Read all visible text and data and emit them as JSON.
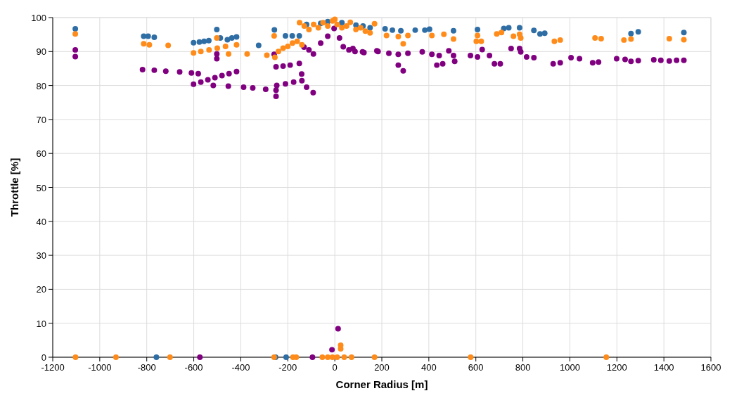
{
  "chart_data": {
    "type": "scatter",
    "xlabel": "Corner Radius [m]",
    "ylabel": "Throttle [%]",
    "xlim": [
      -1200,
      1600
    ],
    "xticks": [
      -1200,
      -1000,
      -800,
      -600,
      -400,
      -200,
      0,
      200,
      400,
      600,
      800,
      1000,
      1200,
      1400,
      1600
    ],
    "ylim": [
      0,
      100
    ],
    "yticks": [
      0,
      10,
      20,
      30,
      40,
      50,
      60,
      70,
      80,
      90,
      100
    ],
    "grid": true,
    "marker": "circle",
    "series": [
      {
        "color": "#2f6ea5",
        "x": [
          -1104,
          -813,
          -794,
          -768,
          -601,
          -576,
          -556,
          -536,
          -502,
          -487,
          -457,
          -438,
          -418,
          -324,
          -257,
          -210,
          -181,
          -151,
          -120,
          -60,
          -30,
          30,
          90,
          120,
          150,
          214,
          245,
          281,
          342,
          383,
          403,
          505,
          607,
          719,
          740,
          786,
          847,
          873,
          893,
          1260,
          1291,
          1485,
          -759,
          -252,
          -207
        ],
        "values": [
          96.7,
          94.5,
          94.5,
          94.2,
          92.6,
          92.8,
          93.0,
          93.2,
          96.5,
          94.0,
          93.5,
          94.0,
          94.3,
          91.8,
          96.4,
          94.6,
          94.6,
          94.6,
          98.0,
          98.3,
          98.8,
          98.5,
          97.8,
          97.5,
          97.0,
          96.7,
          96.3,
          96.1,
          96.3,
          96.3,
          96.6,
          96.1,
          96.5,
          96.8,
          97.0,
          97.0,
          96.2,
          95.2,
          95.4,
          95.3,
          95.8,
          95.6,
          0,
          0,
          0
        ]
      },
      {
        "color": "#800080",
        "x": [
          -1104,
          -1104,
          -818,
          -768,
          -719,
          -660,
          -610,
          -581,
          -601,
          -570,
          -540,
          -510,
          -480,
          -450,
          -418,
          -517,
          -453,
          -388,
          -349,
          -294,
          -250,
          -250,
          -502,
          -502,
          -258,
          -250,
          -220,
          -190,
          -151,
          -141,
          -247,
          -210,
          -175,
          -140,
          -120,
          -92,
          -131,
          -110,
          -91,
          -60,
          -30,
          -3,
          20,
          36,
          60,
          86,
          124,
          184,
          77,
          118,
          179,
          230,
          270,
          311,
          270,
          291,
          372,
          413,
          444,
          434,
          459,
          485,
          505,
          510,
          577,
          607,
          627,
          658,
          679,
          704,
          750,
          786,
          791,
          816,
          847,
          929,
          959,
          1005,
          1041,
          1097,
          1122,
          1199,
          1235,
          1260,
          1291,
          1357,
          1387,
          1423,
          1454,
          1485,
          -574,
          -95,
          -12,
          14
        ],
        "values": [
          90.5,
          88.5,
          84.7,
          84.5,
          84.2,
          84.0,
          83.7,
          83.5,
          80.4,
          81.0,
          81.7,
          82.3,
          82.9,
          83.5,
          84.1,
          80.0,
          79.8,
          79.5,
          79.3,
          78.9,
          78.6,
          76.8,
          87.9,
          89.3,
          89.2,
          85.5,
          85.7,
          86.0,
          86.5,
          83.4,
          80.0,
          80.5,
          81.0,
          81.4,
          79.5,
          77.9,
          91.3,
          90.5,
          89.3,
          92.5,
          94.5,
          96.8,
          94.0,
          91.4,
          90.5,
          90.0,
          89.7,
          90.0,
          90.9,
          89.9,
          90.2,
          89.5,
          89.2,
          89.5,
          86.0,
          84.3,
          89.9,
          89.2,
          88.8,
          86.0,
          86.4,
          90.2,
          88.8,
          87.1,
          88.8,
          88.4,
          90.6,
          88.8,
          86.4,
          86.4,
          90.9,
          90.9,
          89.9,
          88.4,
          88.2,
          86.4,
          86.7,
          88.2,
          87.9,
          86.7,
          86.9,
          87.9,
          87.7,
          87.1,
          87.3,
          87.6,
          87.4,
          87.2,
          87.4,
          87.4,
          0,
          0,
          2.2,
          8.4
        ]
      },
      {
        "color": "#ff8c1a",
        "x": [
          -1104,
          -813,
          -789,
          -709,
          -601,
          -570,
          -535,
          -500,
          -465,
          -418,
          -502,
          -452,
          -373,
          -289,
          -255,
          -258,
          -240,
          -220,
          -200,
          -180,
          -160,
          -140,
          -150,
          -130,
          -110,
          -90,
          -70,
          -50,
          -30,
          -10,
          0,
          10,
          30,
          50,
          66,
          90,
          110,
          130,
          150,
          169,
          220,
          270,
          291,
          311,
          413,
          464,
          505,
          602,
          623,
          607,
          689,
          709,
          760,
          786,
          791,
          934,
          959,
          1107,
          1133,
          1230,
          1260,
          1423,
          1485,
          -1103,
          -931,
          -701,
          -258,
          -178,
          -164,
          -53,
          -30,
          -10,
          10,
          25,
          25,
          40,
          71,
          169,
          578,
          1155
        ],
        "values": [
          95.2,
          92.3,
          92.0,
          91.8,
          89.6,
          90.0,
          90.5,
          91.0,
          91.5,
          92.0,
          94.0,
          89.3,
          89.3,
          88.9,
          88.3,
          94.6,
          90.0,
          91.0,
          91.5,
          92.5,
          93.0,
          92.0,
          98.5,
          97.5,
          96.5,
          98.0,
          97.0,
          98.5,
          97.5,
          99.0,
          99.5,
          98.0,
          97.0,
          97.5,
          98.6,
          96.5,
          97.0,
          96.0,
          95.5,
          98.2,
          94.7,
          94.4,
          92.3,
          94.7,
          94.7,
          95.1,
          93.7,
          93.0,
          93.0,
          94.7,
          95.2,
          95.6,
          94.5,
          95.1,
          94.0,
          93.0,
          93.4,
          94.0,
          93.8,
          93.4,
          93.7,
          93.8,
          93.5,
          0,
          0,
          0,
          0,
          0,
          0,
          0,
          0,
          0,
          0,
          3.5,
          2.5,
          0,
          0,
          0,
          0,
          0
        ]
      }
    ]
  }
}
